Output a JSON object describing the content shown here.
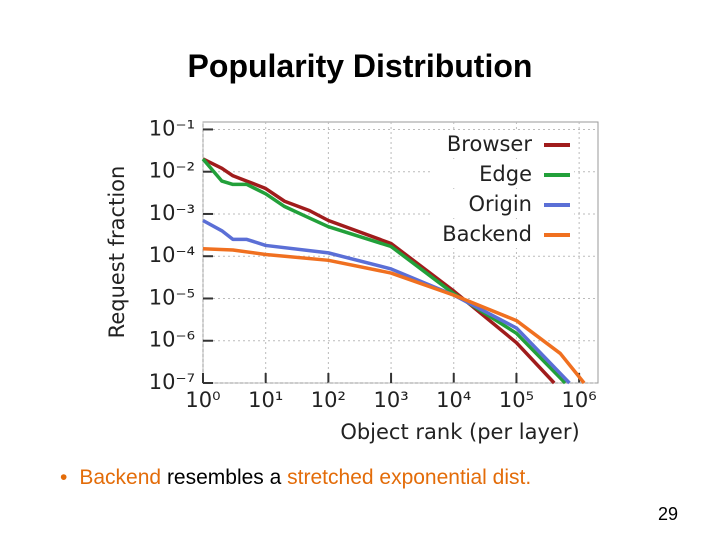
{
  "title": "Popularity Distribution",
  "chart_data": {
    "type": "line",
    "xlabel": "Object rank (per layer)",
    "ylabel": "Request fraction",
    "xscale": "log",
    "yscale": "log",
    "grid": true,
    "legend": "upper right",
    "xlim": [
      1,
      2000000
    ],
    "ylim": [
      1e-07,
      0.15
    ],
    "xticks": [
      {
        "value": 1,
        "label": "10⁰"
      },
      {
        "value": 10,
        "label": "10¹"
      },
      {
        "value": 100,
        "label": "10²"
      },
      {
        "value": 1000,
        "label": "10³"
      },
      {
        "value": 10000,
        "label": "10⁴"
      },
      {
        "value": 100000,
        "label": "10⁵"
      },
      {
        "value": 1000000,
        "label": "10⁶"
      }
    ],
    "yticks": [
      {
        "value": 1e-07,
        "label": "10⁻⁷"
      },
      {
        "value": 1e-06,
        "label": "10⁻⁶"
      },
      {
        "value": 1e-05,
        "label": "10⁻⁵"
      },
      {
        "value": 0.0001,
        "label": "10⁻⁴"
      },
      {
        "value": 0.001,
        "label": "10⁻³"
      },
      {
        "value": 0.01,
        "label": "10⁻²"
      },
      {
        "value": 0.1,
        "label": "10⁻¹"
      }
    ],
    "series": [
      {
        "name": "Browser",
        "color": "#a01c1c",
        "x": [
          1,
          2,
          3,
          5,
          10,
          20,
          50,
          100,
          1000,
          10000,
          100000,
          400000
        ],
        "values": [
          0.02,
          0.012,
          0.008,
          0.006,
          0.004,
          0.002,
          0.0012,
          0.0007,
          0.0002,
          1.5e-05,
          9e-07,
          1e-07
        ]
      },
      {
        "name": "Edge",
        "color": "#22a03a",
        "x": [
          1,
          2,
          3,
          5,
          10,
          20,
          50,
          100,
          1000,
          10000,
          100000,
          600000
        ],
        "values": [
          0.02,
          0.006,
          0.005,
          0.005,
          0.003,
          0.0015,
          0.0008,
          0.0005,
          0.00017,
          1.3e-05,
          1.5e-06,
          1e-07
        ]
      },
      {
        "name": "Origin",
        "color": "#5b6fd6",
        "x": [
          1,
          2,
          3,
          5,
          10,
          100,
          1000,
          10000,
          100000,
          700000
        ],
        "values": [
          0.0007,
          0.0004,
          0.00025,
          0.00025,
          0.00018,
          0.00012,
          5e-05,
          1.2e-05,
          2e-06,
          1e-07
        ]
      },
      {
        "name": "Backend",
        "color": "#f07020",
        "x": [
          1,
          3,
          10,
          100,
          1000,
          10000,
          100000,
          500000,
          1200000
        ],
        "values": [
          0.00015,
          0.00014,
          0.00011,
          8e-05,
          4e-05,
          1.2e-05,
          3e-06,
          5e-07,
          1e-07
        ]
      }
    ]
  },
  "bullet": [
    {
      "text": "Backend",
      "color": "#e36c09"
    },
    {
      "text": "resembles a",
      "color": "#000000"
    },
    {
      "text": "stretched exponential dist.",
      "color": "#e36c09"
    }
  ],
  "page_number": "29"
}
